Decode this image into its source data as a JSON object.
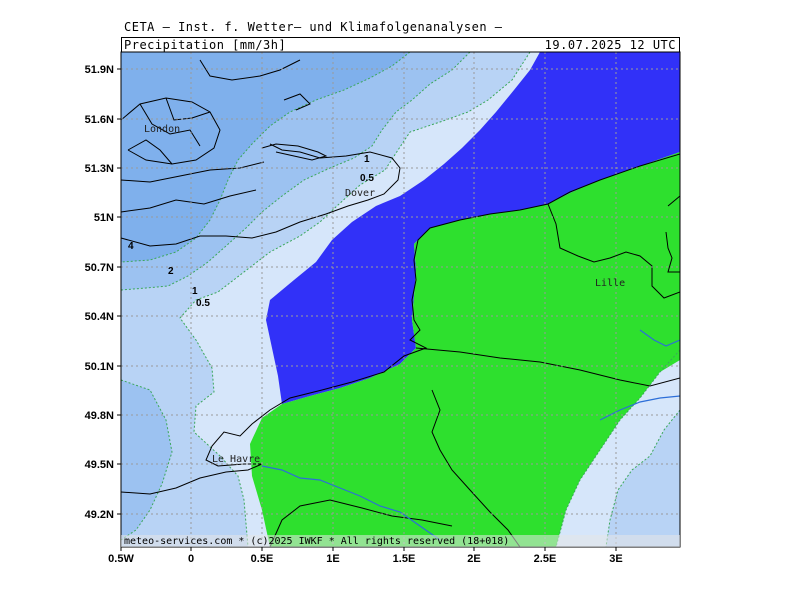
{
  "header": {
    "institute": "CETA — Inst. f. Wetter— und Klimafolgenanalysen —",
    "field": "Precipitation [mm/3h]",
    "valid_time": "19.07.2025 12 UTC"
  },
  "footer": {
    "copyright": "meteo-services.com * (c)2025 IWKF * All rights reserved (18+018)"
  },
  "axes": {
    "lat_labels": [
      "51.9N",
      "51.6N",
      "51.3N",
      "51N",
      "50.7N",
      "50.4N",
      "50.1N",
      "49.8N",
      "49.5N",
      "49.2N"
    ],
    "lon_labels": [
      "0.5W",
      "0",
      "0.5E",
      "1E",
      "1.5E",
      "2E",
      "2.5E",
      "3E"
    ]
  },
  "cities": [
    "London",
    "Dover",
    "Lille",
    "Le Havre"
  ],
  "contour_labels": [
    "4",
    "2",
    "1",
    "0.5",
    "1",
    "0.5"
  ],
  "colors": {
    "band_0_5": "#d6e6fa",
    "band_0_5_1": "#b8d3f5",
    "band_1_2": "#9cc2f1",
    "band_2_4": "#7fb0ec",
    "heavy": "#3131f8",
    "green": "#2ee02e",
    "river": "#2c6ed8"
  }
}
